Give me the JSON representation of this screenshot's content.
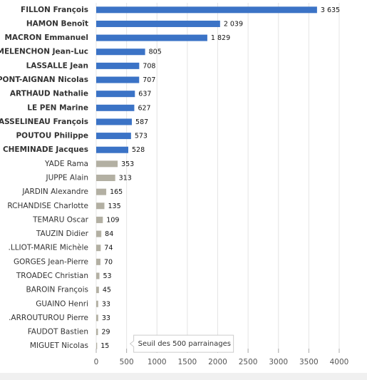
{
  "chart_data": {
    "type": "hbar",
    "categories": [
      "FILLON François",
      "HAMON Benoît",
      "MACRON Emmanuel",
      "MELENCHON Jean-Luc",
      "LASSALLE Jean",
      "PONT-AIGNAN Nicolas",
      "ARTHAUD Nathalie",
      "LE PEN Marine",
      "ASSELINEAU François",
      "POUTOU Philippe",
      "CHEMINADE Jacques",
      "YADE Rama",
      "JUPPE Alain",
      "JARDIN Alexandre",
      "RCHANDISE Charlotte",
      "TEMARU Oscar",
      "TAUZIN Didier",
      ".LLIOT-MARIE Michèle",
      "GORGES Jean-Pierre",
      "TROADEC Christian",
      "BAROIN François",
      "GUAINO Henri",
      ".ARROUTUROU Pierre",
      "FAUDOT Bastien",
      "MIGUET Nicolas"
    ],
    "values": [
      3635,
      2039,
      1829,
      805,
      708,
      707,
      637,
      627,
      587,
      573,
      528,
      353,
      313,
      165,
      135,
      109,
      84,
      74,
      70,
      53,
      45,
      33,
      33,
      29,
      15
    ],
    "value_labels": [
      "3 635",
      "2 039",
      "1 829",
      "805",
      "708",
      "707",
      "637",
      "627",
      "587",
      "573",
      "528",
      "353",
      "313",
      "165",
      "135",
      "109",
      "84",
      "74",
      "70",
      "53",
      "45",
      "33",
      "33",
      "29",
      "15"
    ],
    "threshold": 500,
    "annotation": "Seuil des 500 parrainages",
    "color_above": "#3b73c6",
    "color_below": "#b3b0a3",
    "xlim": [
      0,
      4000
    ],
    "xticks": [
      0,
      500,
      1000,
      1500,
      2000,
      2500,
      3000,
      3500,
      4000
    ],
    "grid": true
  }
}
